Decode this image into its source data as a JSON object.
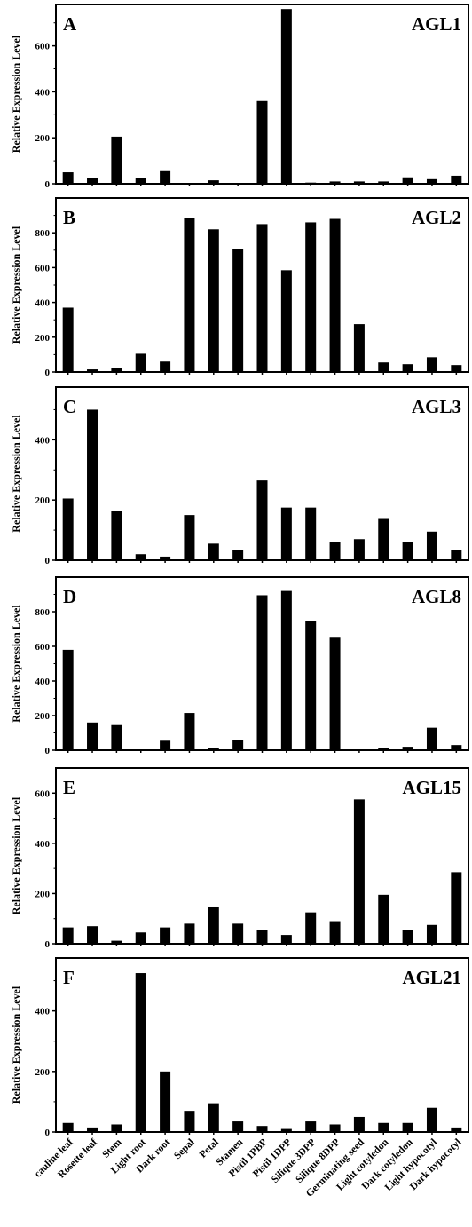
{
  "chart_data": [
    {
      "type": "bar",
      "panel_label": "A",
      "title": "AGL1",
      "ylabel": "Relative Expression Level",
      "ylim": [
        0,
        780
      ],
      "yticks": [
        0,
        200,
        400,
        600
      ],
      "values": [
        50,
        25,
        205,
        25,
        55,
        0,
        15,
        0,
        360,
        760,
        5,
        10,
        10,
        10,
        28,
        20,
        35
      ]
    },
    {
      "type": "bar",
      "panel_label": "B",
      "title": "AGL2",
      "ylabel": "Relative Expression Level",
      "ylim": [
        0,
        1000
      ],
      "yticks": [
        0,
        200,
        400,
        600,
        800
      ],
      "values": [
        370,
        15,
        25,
        105,
        60,
        885,
        820,
        705,
        850,
        585,
        860,
        880,
        275,
        55,
        45,
        85,
        40
      ]
    },
    {
      "type": "bar",
      "panel_label": "C",
      "title": "AGL3",
      "ylabel": "Relative Expression Level",
      "ylim": [
        0,
        575
      ],
      "yticks": [
        0,
        200,
        400
      ],
      "values": [
        205,
        500,
        165,
        20,
        12,
        150,
        55,
        35,
        265,
        175,
        175,
        60,
        70,
        140,
        60,
        95,
        35
      ]
    },
    {
      "type": "bar",
      "panel_label": "D",
      "title": "AGL8",
      "ylabel": "Relative Expression Level",
      "ylim": [
        0,
        1000
      ],
      "yticks": [
        0,
        200,
        400,
        600,
        800
      ],
      "values": [
        580,
        160,
        145,
        5,
        55,
        215,
        15,
        60,
        895,
        920,
        745,
        650,
        5,
        15,
        20,
        130,
        30
      ]
    },
    {
      "type": "bar",
      "panel_label": "E",
      "title": "AGL15",
      "ylabel": "Relative Expression Level",
      "ylim": [
        0,
        700
      ],
      "yticks": [
        0,
        200,
        400,
        600
      ],
      "values": [
        65,
        70,
        12,
        45,
        65,
        80,
        145,
        80,
        55,
        35,
        125,
        90,
        575,
        195,
        55,
        75,
        285
      ]
    },
    {
      "type": "bar",
      "panel_label": "F",
      "title": "AGL21",
      "ylabel": "Relative Expression Level",
      "ylim": [
        0,
        575
      ],
      "yticks": [
        0,
        200,
        400
      ],
      "values": [
        30,
        15,
        25,
        525,
        200,
        70,
        95,
        35,
        20,
        10,
        35,
        25,
        50,
        30,
        30,
        80,
        15
      ]
    }
  ],
  "categories": [
    "cauline leaf",
    "Rosette leaf",
    "Stem",
    "Light root",
    "Dark root",
    "Sepal",
    "Petal",
    "Stamen",
    "Pistil 1PBP",
    "Pistil 1DPP",
    "Silique 3DPP",
    "Silique 8DPP",
    "Germinating seed",
    "Light cotyledon",
    "Dark cotyledon",
    "Light hypocotyl",
    "Dark hypocotyl"
  ],
  "style": {
    "bar_color": "#000000",
    "axis_color": "#000000"
  }
}
